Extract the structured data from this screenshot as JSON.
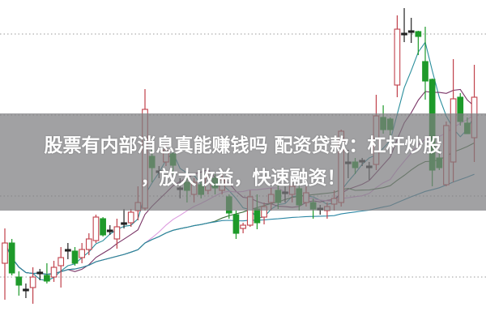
{
  "banner": {
    "line1": "股票有内部消息真能赚钱吗 配资贷款：杠杆炒股",
    "line2": "，放大收益，快速融资！"
  },
  "chart_data": {
    "type": "candlestick",
    "title": "",
    "xlabel": "",
    "ylabel": "",
    "ylim": [
      0,
      400
    ],
    "grid": "horizontal dotted",
    "legend": "none",
    "colors": {
      "up": "#c0404a",
      "down": "#1e9a2a",
      "doji": "#222222",
      "grid": "#9a9a9a",
      "ma5": "#2a8e9c",
      "ma10": "#7a3466",
      "ma20": "#dc9ade",
      "ma30": "#3f6e3c",
      "ma60": "#2b86a4"
    },
    "moving_averages": [
      5,
      10,
      20,
      30,
      60
    ],
    "candles_ohlc": [
      [
        75,
        118,
        30,
        100
      ],
      [
        100,
        105,
        60,
        63
      ],
      [
        58,
        65,
        35,
        48
      ],
      [
        42,
        50,
        32,
        43
      ],
      [
        45,
        70,
        25,
        58
      ],
      [
        63,
        68,
        54,
        64
      ],
      [
        60,
        75,
        50,
        53
      ],
      [
        58,
        78,
        52,
        70
      ],
      [
        72,
        95,
        45,
        82
      ],
      [
        92,
        100,
        80,
        91
      ],
      [
        90,
        95,
        72,
        75
      ],
      [
        82,
        100,
        75,
        92
      ],
      [
        92,
        112,
        85,
        105
      ],
      [
        103,
        135,
        100,
        132
      ],
      [
        130,
        132,
        108,
        110
      ],
      [
        115,
        122,
        110,
        116
      ],
      [
        105,
        130,
        93,
        120
      ],
      [
        124,
        142,
        118,
        125
      ],
      [
        125,
        142,
        120,
        138
      ],
      [
        140,
        170,
        128,
        150
      ],
      [
        143,
        290,
        140,
        265
      ],
      [
        207,
        215,
        175,
        193
      ],
      [
        189,
        195,
        180,
        189
      ],
      [
        200,
        222,
        195,
        215
      ],
      [
        210,
        215,
        185,
        196
      ],
      [
        168,
        180,
        155,
        167
      ],
      [
        175,
        185,
        150,
        165
      ],
      [
        160,
        180,
        150,
        175
      ],
      [
        172,
        178,
        155,
        160
      ],
      [
        165,
        190,
        160,
        180
      ],
      [
        180,
        185,
        160,
        168
      ],
      [
        165,
        185,
        160,
        178
      ],
      [
        157,
        160,
        130,
        137
      ],
      [
        135,
        140,
        105,
        112
      ],
      [
        118,
        125,
        112,
        122
      ],
      [
        122,
        165,
        120,
        157
      ],
      [
        142,
        160,
        117,
        125
      ],
      [
        132,
        150,
        123,
        145
      ],
      [
        150,
        168,
        140,
        160
      ],
      [
        165,
        172,
        142,
        150
      ],
      [
        162,
        170,
        150,
        163
      ],
      [
        160,
        175,
        150,
        170
      ],
      [
        167,
        170,
        140,
        147
      ],
      [
        150,
        170,
        145,
        162
      ],
      [
        150,
        155,
        130,
        142
      ],
      [
        143,
        147,
        135,
        143
      ],
      [
        140,
        150,
        130,
        145
      ],
      [
        148,
        165,
        140,
        155
      ],
      [
        150,
        240,
        145,
        238
      ],
      [
        200,
        215,
        180,
        199
      ],
      [
        200,
        205,
        185,
        193
      ],
      [
        202,
        205,
        195,
        201
      ],
      [
        195,
        200,
        178,
        194
      ],
      [
        197,
        283,
        190,
        257
      ],
      [
        255,
        270,
        235,
        240
      ],
      [
        253,
        255,
        232,
        240
      ],
      [
        295,
        381,
        280,
        364
      ],
      [
        359,
        390,
        348,
        358
      ],
      [
        361,
        378,
        347,
        362
      ],
      [
        361,
        362,
        332,
        355
      ],
      [
        324,
        367,
        277,
        300
      ],
      [
        302,
        303,
        170,
        190
      ],
      [
        205,
        215,
        190,
        193
      ],
      [
        172,
        250,
        170,
        245
      ],
      [
        200,
        327,
        175,
        278
      ],
      [
        280,
        285,
        245,
        250
      ],
      [
        248,
        255,
        235,
        235
      ],
      [
        230,
        320,
        200,
        280
      ]
    ]
  }
}
